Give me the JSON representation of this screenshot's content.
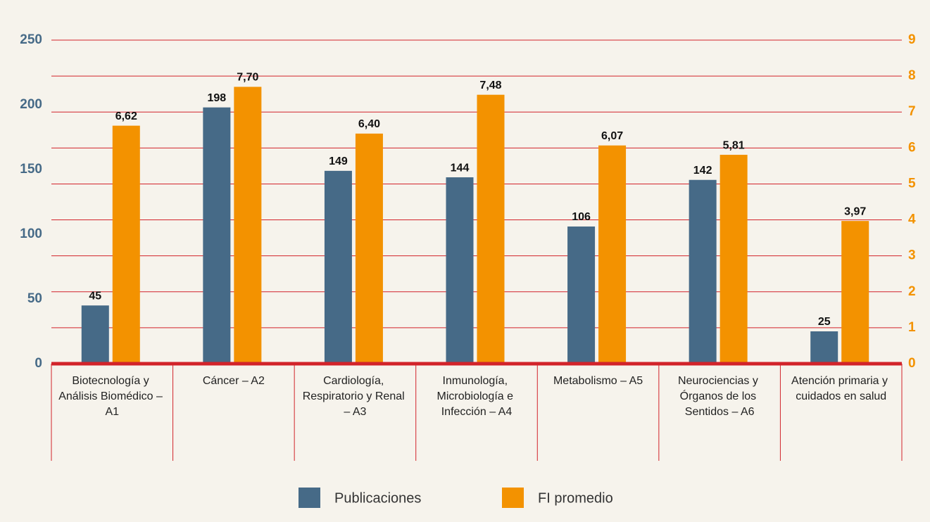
{
  "chart_data": {
    "type": "bar",
    "categories": [
      "Biotecnología y Análisis Biomédico – A1",
      "Cáncer – A2",
      "Cardiología, Respiratorio y Renal – A3",
      "Inmunología, Microbiología e Infección – A4",
      "Metabolismo – A5",
      "Neurociencias y Órganos de los Sentidos – A6",
      "Atención primaria y cuidados en salud"
    ],
    "series": [
      {
        "name": "Publicaciones",
        "color": "#466a87",
        "values": [
          45,
          198,
          149,
          144,
          106,
          142,
          25
        ]
      },
      {
        "name": "FI promedio",
        "color": "#f39200",
        "axis": "y2",
        "values": [
          6.62,
          7.7,
          6.4,
          7.48,
          6.07,
          5.81,
          3.97
        ],
        "value_labels": [
          "6,62",
          "7,70",
          "6,40",
          "7,48",
          "6,07",
          "5,81",
          "3,97"
        ]
      }
    ],
    "ylim": [
      0,
      250
    ],
    "yticks": [
      0,
      50,
      100,
      150,
      200,
      250
    ],
    "y2lim": [
      0,
      9
    ],
    "y2ticks": [
      0,
      1,
      2,
      3,
      4,
      5,
      6,
      7,
      8,
      9
    ],
    "grid": true,
    "legend": "bottom"
  }
}
